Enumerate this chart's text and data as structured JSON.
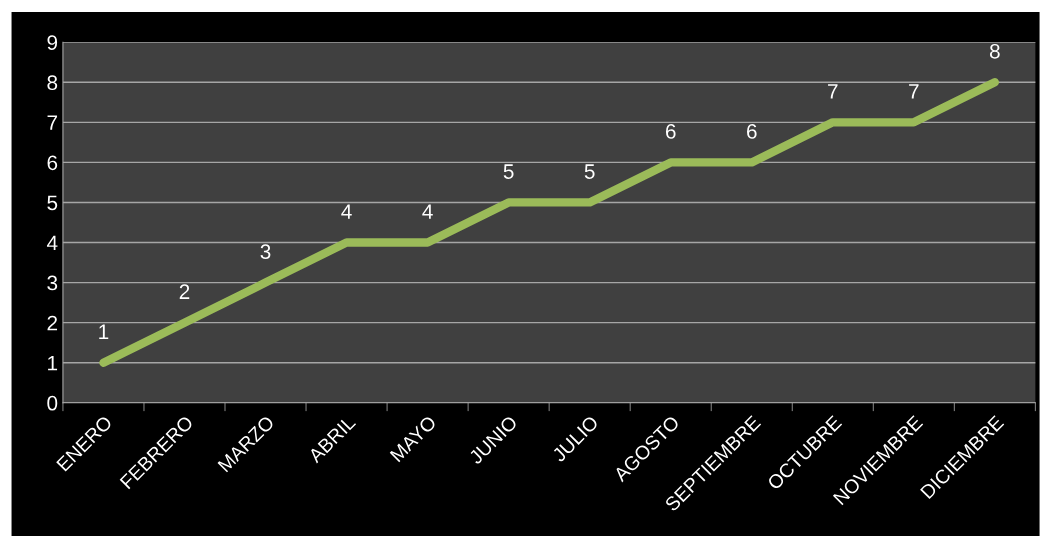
{
  "chart_data": {
    "type": "line",
    "categories": [
      "ENERO",
      "FEBRERO",
      "MARZO",
      "ABRIL",
      "MAYO",
      "JUNIO",
      "JULIO",
      "AGOSTO",
      "SEPTIEMBRE",
      "OCTUBRE",
      "NOVIEMBRE",
      "DICIEMBRE"
    ],
    "series": [
      {
        "color": "#9bbb59",
        "values": [
          1,
          2,
          3,
          4,
          4,
          5,
          5,
          6,
          6,
          7,
          7,
          8
        ]
      }
    ],
    "ylim": [
      0,
      9
    ],
    "yticks": [
      0,
      1,
      2,
      3,
      4,
      5,
      6,
      7,
      8,
      9
    ],
    "grid": "y",
    "data_labels": true,
    "marker": "none",
    "line_style": "solid"
  }
}
